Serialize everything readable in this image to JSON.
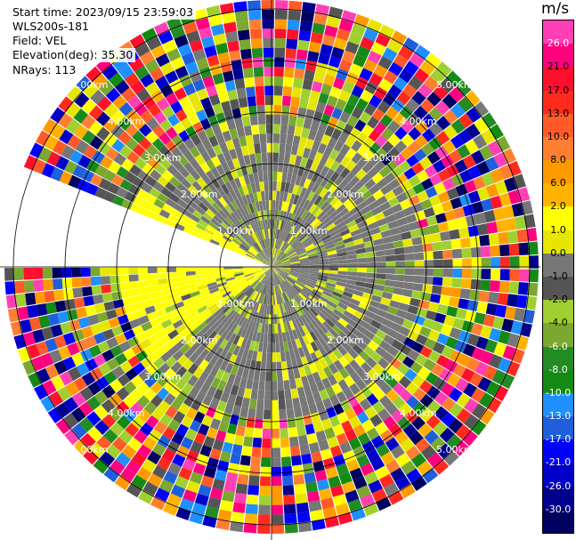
{
  "info": {
    "start_time": "Start time: 2023/09/15 23:59:03",
    "instrument": "WLS200s-181",
    "field": "Field: VEL",
    "elevation": "Elevation(deg): 35.30",
    "nrays": "NRays: 113"
  },
  "chart_data": {
    "type": "heatmap",
    "projection": "polar",
    "grid": true,
    "range_rings": [
      "1.00km",
      "2.00km",
      "3.00km",
      "4.00km",
      "5.00km"
    ],
    "rays": 113,
    "colorbar": {
      "unit": "m/s",
      "ticks": [
        "26.0",
        "21.0",
        "17.0",
        "13.0",
        "10.0",
        "8.0",
        "6.0",
        "2.0",
        "1.0",
        "0.0",
        "-1.0",
        "-2.0",
        "-4.0",
        "-6.0",
        "-8.0",
        "-10.0",
        "-13.0",
        "-17.0",
        "-21.0",
        "-26.0",
        "-30.0"
      ],
      "colors": [
        "#ff3fb4",
        "#ff007f",
        "#ff0f2d",
        "#ff2a1e",
        "#ff5a28",
        "#ff7f32",
        "#ff9900",
        "#ffb300",
        "#ffff00",
        "#e6e600",
        "#777777",
        "#555555",
        "#a0d030",
        "#7aa830",
        "#228b22",
        "#148a14",
        "#1e90ff",
        "#1f5fdb",
        "#0000ff",
        "#0000c8",
        "#00008c",
        "#000060"
      ]
    }
  }
}
